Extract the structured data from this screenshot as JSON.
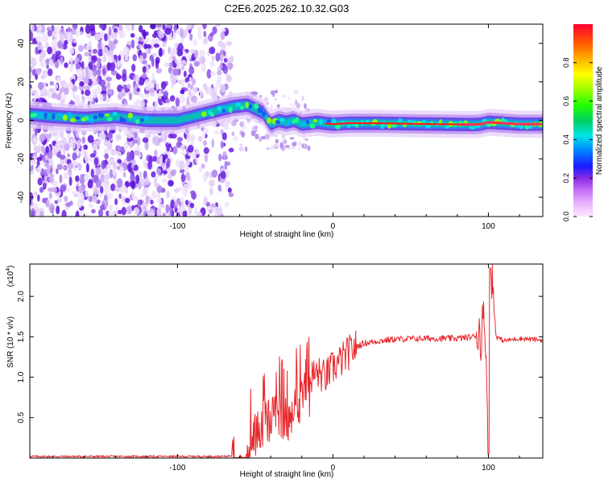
{
  "figure_title": "C2E6.2025.262.10.32.G03",
  "colors": {
    "snr_line": "#e8272b",
    "spec_low": "#d8c6f5",
    "spec_mid": "#6a1ee0",
    "ridge": "#ff1a1a"
  },
  "chart_data": [
    {
      "type": "heatmap",
      "title": "C2E6.2025.262.10.32.G03",
      "xlabel": "Height of straight line (km)",
      "ylabel": "Frequency (Hz)",
      "xlim": [
        -195,
        135
      ],
      "ylim": [
        -50,
        50
      ],
      "x_ticks": [
        -100,
        0,
        100
      ],
      "x_tick_labels": [
        "-100",
        "0",
        "100"
      ],
      "y_ticks": [
        -40,
        -20,
        0,
        20,
        40
      ],
      "y_tick_labels": [
        "-40",
        "-20",
        "0",
        "20",
        "40"
      ],
      "colorbar": {
        "label": "Normalized spectral amplitude",
        "range": [
          0,
          1
        ],
        "ticks": [
          0.0,
          0.2,
          0.4,
          0.6,
          0.8
        ],
        "tick_labels": [
          "0.0",
          "0.2",
          "0.4",
          "0.6",
          "0.8"
        ]
      },
      "ridge": {
        "x": [
          -195,
          -180,
          -160,
          -140,
          -120,
          -100,
          -85,
          -75,
          -65,
          -55,
          -45,
          -40,
          -35,
          -30,
          -25,
          -20,
          -10,
          0,
          10,
          30,
          50,
          70,
          90,
          95,
          100,
          110,
          120,
          135
        ],
        "y": [
          3,
          2,
          1,
          2,
          0,
          0,
          3,
          5,
          7,
          8,
          4,
          -2,
          0,
          -1,
          0,
          -2,
          -1,
          -2,
          -1.5,
          -1.5,
          -1.8,
          -2,
          -2.2,
          -2,
          -1,
          -1.5,
          -2,
          -2
        ]
      }
    },
    {
      "type": "line",
      "xlabel": "Height of straight line (km)",
      "ylabel": "SNR (10 * v/v)",
      "y_multiplier_label": "(x10",
      "y_multiplier_exp": "4",
      "y_multiplier_close": ")",
      "xlim": [
        -195,
        135
      ],
      "ylim": [
        0,
        2.4
      ],
      "x_ticks": [
        -100,
        0,
        100
      ],
      "x_tick_labels": [
        "-100",
        "0",
        "100"
      ],
      "y_ticks": [
        0.5,
        1.0,
        1.5,
        2.0
      ],
      "y_tick_labels": [
        "0.5",
        "1.0",
        "1.5",
        "2.0"
      ],
      "series": [
        {
          "name": "SNR",
          "x": [
            -195,
            -180,
            -160,
            -140,
            -120,
            -100,
            -80,
            -70,
            -65,
            -60,
            -55,
            -50,
            -45,
            -40,
            -35,
            -30,
            -25,
            -20,
            -15,
            -10,
            -5,
            0,
            5,
            10,
            15,
            20,
            30,
            40,
            60,
            80,
            90,
            95,
            98,
            100,
            102,
            105,
            110,
            120,
            135
          ],
          "values": [
            0.02,
            0.02,
            0.02,
            0.02,
            0.02,
            0.02,
            0.02,
            0.02,
            0.03,
            0.05,
            0.25,
            0.55,
            0.7,
            0.8,
            0.85,
            0.75,
            0.9,
            0.95,
            1.0,
            1.05,
            1.0,
            1.12,
            1.2,
            1.3,
            1.38,
            1.42,
            1.45,
            1.47,
            1.48,
            1.48,
            1.5,
            1.55,
            1.7,
            0.05,
            2.35,
            1.5,
            1.45,
            1.48,
            1.46
          ]
        }
      ]
    }
  ]
}
